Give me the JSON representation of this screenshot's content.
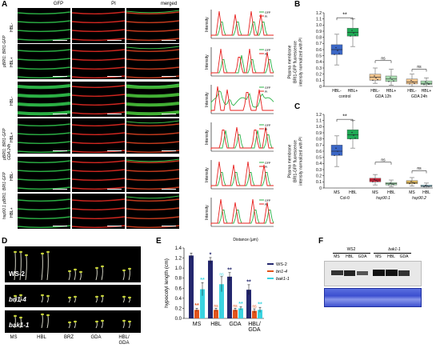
{
  "panel_A": {
    "letter": "A",
    "col_headers": [
      "GFP",
      "PI",
      "merged"
    ],
    "group_labels": [
      "pBRI1: BRI1-GFP",
      "pBRI1: BRI1-GFP\nGDA 24h",
      "hsp90.1 pBRI1: BRI1-GFP"
    ],
    "row_labels": [
      "HBL-",
      "HBL+",
      "HBL-",
      "HBL+",
      "HBL-",
      "HBL+"
    ],
    "profile_ylabel": "Intensity",
    "profile_xlabel": "Distance (µm)",
    "legend": [
      "GFP",
      "PI"
    ],
    "colors": {
      "gfp": "#2db34a",
      "pi": "#e8201e"
    }
  },
  "panel_B": {
    "letter": "B",
    "ylabel": "Plasma membrane\nBRI1-GFP fluorescence\nintensity normalized with PI",
    "sig": [
      "**",
      "ns",
      "ns"
    ],
    "group_labels": [
      "control",
      "GDA 12h",
      "GDA 24h"
    ],
    "box_labels": [
      "HBL-",
      "HBL+"
    ]
  },
  "panel_C": {
    "letter": "C",
    "ylabel": "Plasma membrane\nBRI1-GFP fluorescence\nintensity normalized with PI",
    "sig": [
      "**",
      "ns",
      "ns"
    ],
    "box_labels": [
      "MS",
      "HBL"
    ],
    "group_labels": [
      "Col-0",
      "hsp90.1",
      "hsp90.2"
    ]
  },
  "panel_D": {
    "letter": "D",
    "genotypes": [
      "WS-2",
      "bri1-4",
      "bak1-1"
    ],
    "treatments": [
      "MS",
      "HBL",
      "BRZ",
      "GDA",
      "HBL/\nGDA"
    ]
  },
  "panel_E": {
    "letter": "E",
    "legend": [
      "WS-2",
      "bri1-4",
      "bak1-1"
    ]
  },
  "panel_F": {
    "letter": "F",
    "genotypes": [
      "WS2",
      "bak1-1"
    ],
    "lanes": [
      "MS",
      "HBL",
      "GDA",
      "MS",
      "HBL",
      "GDA"
    ]
  },
  "chart_data": [
    {
      "type": "box",
      "panel": "B",
      "ylim": [
        0,
        1.2
      ],
      "yticks": [
        0,
        0.1,
        0.2,
        0.3,
        0.4,
        0.5,
        0.6,
        0.7,
        0.8,
        0.9,
        1.0,
        1.1,
        1.2
      ],
      "categories": [
        "HBL- control",
        "HBL+ control",
        "HBL- GDA 12h",
        "HBL+ GDA 12h",
        "HBL- GDA 24h",
        "HBL+ GDA 24h"
      ],
      "boxes": [
        {
          "min": 0.35,
          "q1": 0.52,
          "median": 0.6,
          "q3": 0.68,
          "max": 0.85,
          "color": "#3b67c6"
        },
        {
          "min": 0.65,
          "q1": 0.82,
          "median": 0.88,
          "q3": 0.95,
          "max": 1.1,
          "color": "#1faa55"
        },
        {
          "min": 0.05,
          "q1": 0.1,
          "median": 0.15,
          "q3": 0.2,
          "max": 0.3,
          "color": "#efc38c"
        },
        {
          "min": 0.02,
          "q1": 0.08,
          "median": 0.12,
          "q3": 0.17,
          "max": 0.28,
          "color": "#a8ddb0"
        },
        {
          "min": 0.0,
          "q1": 0.04,
          "median": 0.07,
          "q3": 0.12,
          "max": 0.2,
          "color": "#efc38c"
        },
        {
          "min": 0.0,
          "q1": 0.03,
          "median": 0.05,
          "q3": 0.09,
          "max": 0.14,
          "color": "#a8ddb0"
        }
      ]
    },
    {
      "type": "box",
      "panel": "C",
      "ylim": [
        0,
        1.2
      ],
      "yticks": [
        0,
        0.1,
        0.2,
        0.3,
        0.4,
        0.5,
        0.6,
        0.7,
        0.8,
        0.9,
        1.0,
        1.1,
        1.2
      ],
      "categories": [
        "MS Col-0",
        "HBL Col-0",
        "MS hsp90.1",
        "HBL hsp90.1",
        "MS hsp90.2",
        "HBL hsp90.2"
      ],
      "boxes": [
        {
          "min": 0.35,
          "q1": 0.53,
          "median": 0.6,
          "q3": 0.7,
          "max": 0.85,
          "color": "#3b67c6"
        },
        {
          "min": 0.65,
          "q1": 0.8,
          "median": 0.87,
          "q3": 0.95,
          "max": 1.1,
          "color": "#1faa55"
        },
        {
          "min": 0.05,
          "q1": 0.1,
          "median": 0.13,
          "q3": 0.16,
          "max": 0.22,
          "color": "#d9263a"
        },
        {
          "min": 0.02,
          "q1": 0.05,
          "median": 0.07,
          "q3": 0.09,
          "max": 0.13,
          "color": "#a8ddb0"
        },
        {
          "min": 0.03,
          "q1": 0.07,
          "median": 0.09,
          "q3": 0.12,
          "max": 0.17,
          "color": "#e8c060"
        },
        {
          "min": 0.0,
          "q1": 0.02,
          "median": 0.03,
          "q3": 0.05,
          "max": 0.08,
          "color": "#9fd8e6"
        }
      ]
    },
    {
      "type": "bar",
      "panel": "E",
      "ylabel": "hypocotyl length (cm)",
      "ylim": [
        0,
        1.4
      ],
      "yticks": [
        0,
        0.2,
        0.4,
        0.6,
        0.8,
        1.0,
        1.2,
        1.4
      ],
      "categories": [
        "MS",
        "HBL",
        "GDA",
        "HBL/\nGDA"
      ],
      "series": [
        {
          "name": "WS-2",
          "color": "#24276e",
          "values": [
            1.25,
            1.15,
            0.83,
            0.57
          ],
          "errors": [
            0.05,
            0.06,
            0.08,
            0.1
          ],
          "sig": [
            "",
            "*",
            "**",
            "**"
          ]
        },
        {
          "name": "bri1-4",
          "color": "#e2541c",
          "values": [
            0.17,
            0.17,
            0.17,
            0.15
          ],
          "errors": [
            0.03,
            0.03,
            0.03,
            0.04
          ],
          "sig": [
            "**",
            "ns",
            "ns",
            "ns"
          ]
        },
        {
          "name": "bak1-1",
          "color": "#3ad3e0",
          "values": [
            0.58,
            0.68,
            0.2,
            0.17
          ],
          "errors": [
            0.13,
            0.15,
            0.03,
            0.05
          ],
          "sig": [
            "**",
            "ns",
            "**",
            "**"
          ]
        }
      ]
    }
  ]
}
